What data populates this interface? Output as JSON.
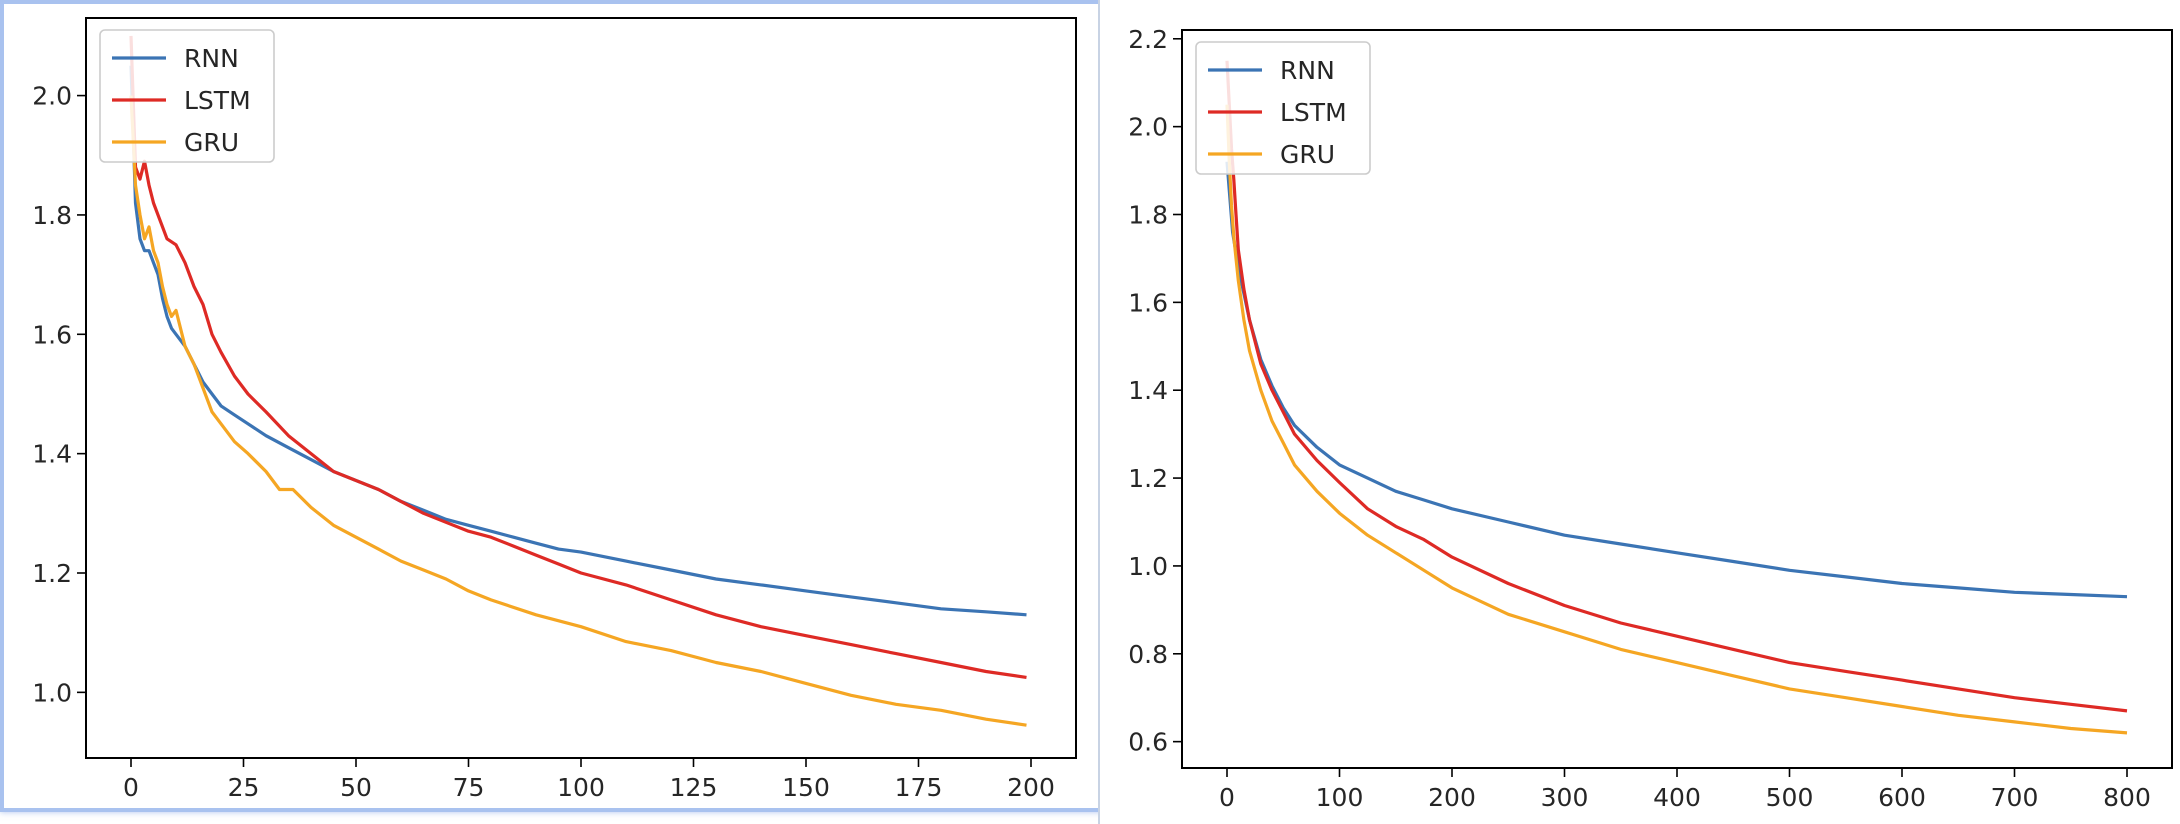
{
  "chart_data": [
    {
      "type": "line",
      "title": "",
      "xlabel": "",
      "ylabel": "",
      "xlim": [
        -10,
        210
      ],
      "ylim": [
        0.89,
        2.13
      ],
      "xticks": [
        0,
        25,
        50,
        75,
        100,
        125,
        150,
        175,
        200
      ],
      "xtick_labels": [
        "0",
        "25",
        "50",
        "75",
        "100",
        "125",
        "150",
        "175",
        "200"
      ],
      "yticks": [
        1.0,
        1.2,
        1.4,
        1.6,
        1.8,
        2.0
      ],
      "ytick_labels": [
        "1.0",
        "1.2",
        "1.4",
        "1.6",
        "1.8",
        "2.0"
      ],
      "legend_position": "top-left",
      "series": [
        {
          "name": "RNN",
          "color": "#3b74b4",
          "x": [
            0,
            1,
            2,
            3,
            4,
            5,
            6,
            7,
            8,
            9,
            10,
            12,
            14,
            16,
            18,
            20,
            23,
            26,
            30,
            35,
            40,
            45,
            50,
            55,
            60,
            65,
            70,
            75,
            80,
            85,
            90,
            95,
            100,
            110,
            120,
            130,
            140,
            150,
            160,
            170,
            180,
            190,
            199
          ],
          "y": [
            2.05,
            1.82,
            1.76,
            1.74,
            1.74,
            1.72,
            1.7,
            1.66,
            1.63,
            1.61,
            1.6,
            1.58,
            1.55,
            1.52,
            1.5,
            1.48,
            1.465,
            1.45,
            1.43,
            1.41,
            1.39,
            1.37,
            1.355,
            1.34,
            1.32,
            1.305,
            1.29,
            1.28,
            1.27,
            1.26,
            1.25,
            1.24,
            1.235,
            1.22,
            1.205,
            1.19,
            1.18,
            1.17,
            1.16,
            1.15,
            1.14,
            1.135,
            1.13
          ]
        },
        {
          "name": "LSTM",
          "color": "#de2a25",
          "x": [
            0,
            1,
            2,
            3,
            4,
            5,
            6,
            8,
            10,
            12,
            14,
            16,
            18,
            20,
            23,
            26,
            30,
            35,
            40,
            45,
            50,
            55,
            60,
            65,
            70,
            75,
            80,
            85,
            90,
            95,
            100,
            110,
            120,
            130,
            140,
            150,
            160,
            170,
            180,
            190,
            199
          ],
          "y": [
            2.1,
            1.88,
            1.86,
            1.89,
            1.85,
            1.82,
            1.8,
            1.76,
            1.75,
            1.72,
            1.68,
            1.65,
            1.6,
            1.57,
            1.53,
            1.5,
            1.47,
            1.43,
            1.4,
            1.37,
            1.355,
            1.34,
            1.32,
            1.3,
            1.285,
            1.27,
            1.26,
            1.245,
            1.23,
            1.215,
            1.2,
            1.18,
            1.155,
            1.13,
            1.11,
            1.095,
            1.08,
            1.065,
            1.05,
            1.035,
            1.025
          ]
        },
        {
          "name": "GRU",
          "color": "#f5a623",
          "x": [
            0,
            1,
            2,
            3,
            4,
            5,
            6,
            7,
            8,
            9,
            10,
            12,
            14,
            16,
            18,
            20,
            23,
            26,
            30,
            33,
            36,
            40,
            45,
            50,
            55,
            60,
            65,
            70,
            75,
            80,
            90,
            100,
            110,
            120,
            130,
            140,
            150,
            160,
            170,
            180,
            190,
            199
          ],
          "y": [
            2.0,
            1.85,
            1.8,
            1.76,
            1.78,
            1.74,
            1.72,
            1.68,
            1.65,
            1.63,
            1.64,
            1.58,
            1.55,
            1.51,
            1.47,
            1.45,
            1.42,
            1.4,
            1.37,
            1.34,
            1.34,
            1.31,
            1.28,
            1.26,
            1.24,
            1.22,
            1.205,
            1.19,
            1.17,
            1.155,
            1.13,
            1.11,
            1.085,
            1.07,
            1.05,
            1.035,
            1.015,
            0.995,
            0.98,
            0.97,
            0.955,
            0.945
          ]
        }
      ]
    },
    {
      "type": "line",
      "title": "",
      "xlabel": "",
      "ylabel": "",
      "xlim": [
        -40,
        840
      ],
      "ylim": [
        0.54,
        2.22
      ],
      "xticks": [
        0,
        100,
        200,
        300,
        400,
        500,
        600,
        700,
        800
      ],
      "xtick_labels": [
        "0",
        "100",
        "200",
        "300",
        "400",
        "500",
        "600",
        "700",
        "800"
      ],
      "yticks": [
        0.6,
        0.8,
        1.0,
        1.2,
        1.4,
        1.6,
        1.8,
        2.0,
        2.2
      ],
      "ytick_labels": [
        "0.6",
        "0.8",
        "1.0",
        "1.2",
        "1.4",
        "1.6",
        "1.8",
        "2.0",
        "2.2"
      ],
      "legend_position": "top-left",
      "series": [
        {
          "name": "RNN",
          "color": "#3b74b4",
          "x": [
            0,
            5,
            10,
            15,
            20,
            30,
            40,
            50,
            60,
            80,
            100,
            125,
            150,
            175,
            200,
            250,
            300,
            350,
            400,
            450,
            500,
            550,
            600,
            650,
            700,
            750,
            800
          ],
          "y": [
            1.92,
            1.76,
            1.68,
            1.62,
            1.56,
            1.47,
            1.41,
            1.36,
            1.32,
            1.27,
            1.23,
            1.2,
            1.17,
            1.15,
            1.13,
            1.1,
            1.07,
            1.05,
            1.03,
            1.01,
            0.99,
            0.975,
            0.96,
            0.95,
            0.94,
            0.935,
            0.93
          ]
        },
        {
          "name": "LSTM",
          "color": "#de2a25",
          "x": [
            0,
            2,
            4,
            6,
            8,
            10,
            15,
            20,
            30,
            40,
            50,
            60,
            80,
            100,
            125,
            150,
            175,
            200,
            250,
            300,
            350,
            400,
            450,
            500,
            550,
            600,
            650,
            700,
            750,
            800
          ],
          "y": [
            2.15,
            2.05,
            1.95,
            1.88,
            1.8,
            1.72,
            1.63,
            1.56,
            1.46,
            1.4,
            1.35,
            1.3,
            1.24,
            1.19,
            1.13,
            1.09,
            1.06,
            1.02,
            0.96,
            0.91,
            0.87,
            0.84,
            0.81,
            0.78,
            0.76,
            0.74,
            0.72,
            0.7,
            0.685,
            0.67
          ]
        },
        {
          "name": "GRU",
          "color": "#f5a623",
          "x": [
            0,
            2,
            4,
            6,
            8,
            10,
            15,
            20,
            30,
            40,
            50,
            60,
            80,
            100,
            125,
            150,
            175,
            200,
            250,
            300,
            350,
            400,
            450,
            500,
            550,
            600,
            650,
            700,
            750,
            800
          ],
          "y": [
            2.05,
            1.92,
            1.82,
            1.75,
            1.7,
            1.65,
            1.56,
            1.49,
            1.4,
            1.33,
            1.28,
            1.23,
            1.17,
            1.12,
            1.07,
            1.03,
            0.99,
            0.95,
            0.89,
            0.85,
            0.81,
            0.78,
            0.75,
            0.72,
            0.7,
            0.68,
            0.66,
            0.645,
            0.63,
            0.62
          ]
        }
      ]
    }
  ]
}
